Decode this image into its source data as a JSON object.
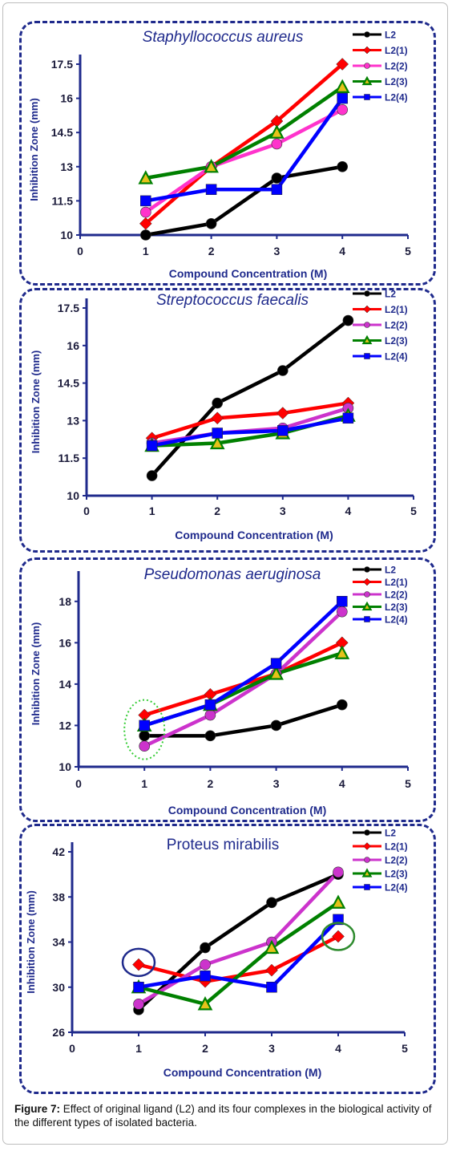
{
  "chart_data": [
    {
      "type": "line",
      "title": "Staphyllococcus aureus",
      "title_style": "italic",
      "xlabel": "Compound Concentration (M)",
      "ylabel": "Inhibition Zone (mm)",
      "xlim": [
        0,
        5
      ],
      "ylim": [
        10,
        17.5
      ],
      "xticks": [
        "0",
        "1",
        "2",
        "3",
        "4",
        "5"
      ],
      "yticks": [
        "10",
        "11.5",
        "13",
        "14.5",
        "16",
        "17.5"
      ],
      "grid": false,
      "legend_position": "top-right",
      "x": [
        1,
        2,
        3,
        4
      ],
      "series": [
        {
          "name": "L2",
          "color": "#000000",
          "marker": "circle",
          "values": [
            10,
            10.5,
            12.5,
            13
          ]
        },
        {
          "name": "L2(1)",
          "color": "#ff0000",
          "marker": "diamond",
          "values": [
            10.5,
            13,
            15,
            17.5
          ]
        },
        {
          "name": "L2(2)",
          "color": "#ff33cc",
          "marker": "circle",
          "values": [
            11,
            13,
            14,
            15.5
          ]
        },
        {
          "name": "L2(3)",
          "color": "#008000",
          "marker": "triangle",
          "values": [
            12.5,
            13,
            14.5,
            16.5
          ]
        },
        {
          "name": "L2(4)",
          "color": "#0000ff",
          "marker": "square",
          "values": [
            11.5,
            12,
            12,
            16
          ]
        }
      ]
    },
    {
      "type": "line",
      "title": "Streptococcus faecalis",
      "title_style": "italic",
      "xlabel": "Compound Concentration (M)",
      "ylabel": "Inhibition Zone (mm)",
      "xlim": [
        0,
        5
      ],
      "ylim": [
        10,
        17.5
      ],
      "xticks": [
        "0",
        "1",
        "2",
        "3",
        "4",
        "5"
      ],
      "yticks": [
        "10",
        "11.5",
        "13",
        "14.5",
        "16",
        "17.5"
      ],
      "grid": false,
      "legend_position": "top-right",
      "x": [
        1,
        2,
        3,
        4
      ],
      "series": [
        {
          "name": "L2",
          "color": "#000000",
          "marker": "circle",
          "values": [
            10.8,
            13.7,
            15,
            17
          ]
        },
        {
          "name": "L2(1)",
          "color": "#ff0000",
          "marker": "diamond",
          "values": [
            12.3,
            13.1,
            13.3,
            13.7
          ]
        },
        {
          "name": "L2(2)",
          "color": "#cc33cc",
          "marker": "circle",
          "values": [
            12.1,
            12.5,
            12.7,
            13.5
          ]
        },
        {
          "name": "L2(3)",
          "color": "#008000",
          "marker": "triangle",
          "values": [
            12,
            12.1,
            12.5,
            13.2
          ]
        },
        {
          "name": "L2(4)",
          "color": "#0000ff",
          "marker": "square",
          "values": [
            12,
            12.5,
            12.6,
            13.1
          ]
        }
      ]
    },
    {
      "type": "line",
      "title": "Pseudomonas aeruginosa",
      "title_style": "italic",
      "xlabel": "Compound Concentration (M)",
      "ylabel": "Inhibition Zone (mm)",
      "xlim": [
        0,
        5
      ],
      "ylim": [
        10,
        19
      ],
      "xticks": [
        "0",
        "1",
        "2",
        "3",
        "4",
        "5"
      ],
      "yticks": [
        "10",
        "12",
        "14",
        "16",
        "18"
      ],
      "grid": false,
      "legend_position": "top-right",
      "x": [
        1,
        2,
        3,
        4
      ],
      "series": [
        {
          "name": "L2",
          "color": "#000000",
          "marker": "circle",
          "values": [
            11.5,
            11.5,
            12,
            13
          ]
        },
        {
          "name": "L2(1)",
          "color": "#ff0000",
          "marker": "diamond",
          "values": [
            12.5,
            13.5,
            14.5,
            16
          ]
        },
        {
          "name": "L2(2)",
          "color": "#cc33cc",
          "marker": "circle",
          "values": [
            11,
            12.5,
            14.5,
            17.5
          ]
        },
        {
          "name": "L2(3)",
          "color": "#008000",
          "marker": "triangle",
          "values": [
            12,
            13,
            14.5,
            15.5
          ]
        },
        {
          "name": "L2(4)",
          "color": "#0000ff",
          "marker": "square",
          "values": [
            12,
            13,
            15,
            18
          ]
        }
      ],
      "annotations": [
        {
          "shape": "dotted-ellipse",
          "color": "#33cc33",
          "x": 1,
          "y": 11.8
        }
      ]
    },
    {
      "type": "line",
      "title": "Proteus mirabilis",
      "title_style": "normal",
      "xlabel": "Compound Concentration (M)",
      "ylabel": "Inhibition Zone (mm)",
      "xlim": [
        0,
        5
      ],
      "ylim": [
        26,
        42
      ],
      "xticks": [
        "0",
        "1",
        "2",
        "3",
        "4",
        "5"
      ],
      "yticks": [
        "26",
        "30",
        "34",
        "38",
        "42"
      ],
      "grid": false,
      "legend_position": "top-right",
      "x": [
        1,
        2,
        3,
        4
      ],
      "series": [
        {
          "name": "L2",
          "color": "#000000",
          "marker": "circle",
          "values": [
            28,
            33.5,
            37.5,
            40
          ]
        },
        {
          "name": "L2(1)",
          "color": "#ff0000",
          "marker": "diamond",
          "values": [
            32,
            30.5,
            31.5,
            34.5
          ]
        },
        {
          "name": "L2(2)",
          "color": "#cc33cc",
          "marker": "circle",
          "values": [
            28.5,
            32,
            34,
            40.2
          ]
        },
        {
          "name": "L2(3)",
          "color": "#008000",
          "marker": "triangle",
          "values": [
            30,
            28.5,
            33.5,
            37.5
          ]
        },
        {
          "name": "L2(4)",
          "color": "#0000ff",
          "marker": "square",
          "values": [
            30,
            31,
            30,
            36
          ]
        }
      ],
      "annotations": [
        {
          "shape": "ellipse",
          "color": "#1f2a8c",
          "x": 1,
          "y": 32.2
        },
        {
          "shape": "ellipse",
          "color": "#2e8b2e",
          "x": 4,
          "y": 34.5
        }
      ]
    }
  ],
  "caption": {
    "label": "Figure 7:",
    "text": " Effect of original ligand (L2) and its four complexes in the biological activity of the different types of isolated bacteria."
  }
}
